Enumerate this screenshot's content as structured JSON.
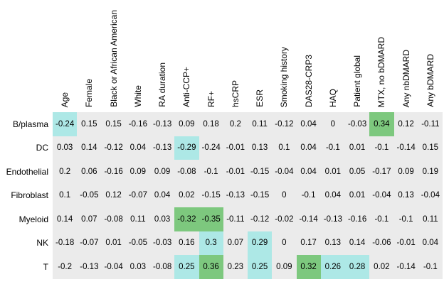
{
  "figure": {
    "bg_color": "#ffffff",
    "cell_bg": "#ebebeb",
    "text_color": "#000000",
    "highlight_colors": {
      "cyan": "#ade8e6",
      "green": "#7dc87e"
    }
  },
  "chart_data": {
    "type": "heatmap",
    "description": "Correlation heatmap of cell types vs clinical variables; numbers annotated in each cell; significant cells highlighted cyan (moderate) or green (strong)",
    "columns": [
      "Age",
      "Female",
      "Black or African American",
      "White",
      "RA duration",
      "Anti-CCP+",
      "RF+",
      "hsCRP",
      "ESR",
      "Smoking history",
      "DAS28-CRP3",
      "HAQ",
      "Patient global",
      "MTX, no bDMARD",
      "Any nbDMARD",
      "Any bDMARD"
    ],
    "rows": [
      {
        "label": "B/plasma",
        "values": [
          -0.24,
          0.15,
          0.15,
          -0.16,
          -0.13,
          0.09,
          0.18,
          0.2,
          0.11,
          -0.12,
          0.04,
          0,
          -0.03,
          0.34,
          0.12,
          -0.11
        ],
        "highlights": {
          "0": "cyan",
          "13": "green"
        }
      },
      {
        "label": "DC",
        "values": [
          0.03,
          0.14,
          -0.12,
          0.04,
          -0.13,
          -0.29,
          -0.24,
          -0.01,
          0.13,
          0.1,
          0.04,
          -0.1,
          0.01,
          -0.1,
          -0.14,
          0.15
        ],
        "highlights": {
          "5": "cyan"
        }
      },
      {
        "label": "Endothelial",
        "values": [
          0.2,
          0.06,
          -0.16,
          0.09,
          0.09,
          -0.08,
          -0.1,
          -0.01,
          -0.15,
          -0.04,
          0.04,
          0.01,
          0.05,
          -0.17,
          0.09,
          0.19
        ],
        "highlights": {}
      },
      {
        "label": "Fibroblast",
        "values": [
          0.1,
          -0.05,
          0.12,
          -0.07,
          0.04,
          0.02,
          -0.15,
          -0.13,
          -0.15,
          0,
          -0.1,
          0.04,
          0.01,
          -0.04,
          0.13,
          -0.04
        ],
        "highlights": {}
      },
      {
        "label": "Myeloid",
        "values": [
          0.14,
          0.07,
          -0.08,
          0.11,
          0.03,
          -0.32,
          -0.35,
          -0.11,
          -0.12,
          -0.02,
          -0.14,
          -0.13,
          -0.16,
          -0.1,
          -0.1,
          0.11
        ],
        "highlights": {
          "5": "green",
          "6": "green"
        }
      },
      {
        "label": "NK",
        "values": [
          -0.18,
          -0.07,
          0.01,
          -0.05,
          -0.03,
          0.16,
          0.3,
          0.07,
          0.29,
          0,
          0.17,
          0.13,
          0.14,
          -0.06,
          -0.01,
          0.04
        ],
        "highlights": {
          "6": "cyan",
          "8": "cyan"
        }
      },
      {
        "label": "T",
        "values": [
          -0.2,
          -0.13,
          -0.04,
          0.03,
          -0.08,
          0.25,
          0.36,
          0.23,
          0.25,
          0.09,
          0.32,
          0.26,
          0.28,
          0.02,
          -0.14,
          -0.1
        ],
        "highlights": {
          "5": "cyan",
          "6": "green",
          "8": "cyan",
          "10": "green",
          "11": "cyan",
          "12": "cyan"
        }
      }
    ]
  }
}
